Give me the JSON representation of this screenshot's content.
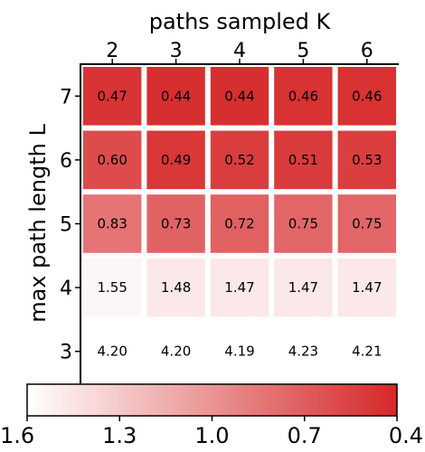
{
  "chart_data": {
    "type": "heatmap",
    "xlabel": "paths sampled K",
    "ylabel": "max path length L",
    "x": [
      2,
      3,
      4,
      5,
      6
    ],
    "y": [
      7,
      6,
      5,
      4,
      3
    ],
    "values": [
      [
        0.47,
        0.44,
        0.44,
        0.46,
        0.46
      ],
      [
        0.6,
        0.49,
        0.52,
        0.51,
        0.53
      ],
      [
        0.83,
        0.73,
        0.72,
        0.75,
        0.75
      ],
      [
        1.55,
        1.48,
        1.47,
        1.47,
        1.47
      ],
      [
        4.2,
        4.2,
        4.19,
        4.23,
        4.21
      ]
    ],
    "cell_labels": [
      [
        "0.47",
        "0.44",
        "0.44",
        "0.46",
        "0.46"
      ],
      [
        "0.60",
        "0.49",
        "0.52",
        "0.51",
        "0.53"
      ],
      [
        "0.83",
        "0.73",
        "0.72",
        "0.75",
        "0.75"
      ],
      [
        "1.55",
        "1.48",
        "1.47",
        "1.47",
        "1.47"
      ],
      [
        "4.20",
        "4.20",
        "4.19",
        "4.23",
        "4.21"
      ]
    ],
    "colorbar": {
      "min": 0.4,
      "max": 1.6,
      "reversed": true,
      "ticks": [
        1.6,
        1.3,
        1.0,
        0.7,
        0.4
      ],
      "tick_labels": [
        "1.6",
        "1.3",
        "1.0",
        "0.7",
        "0.4"
      ],
      "color_low_value": "#d62728",
      "color_high_value": "#ffffff"
    }
  }
}
